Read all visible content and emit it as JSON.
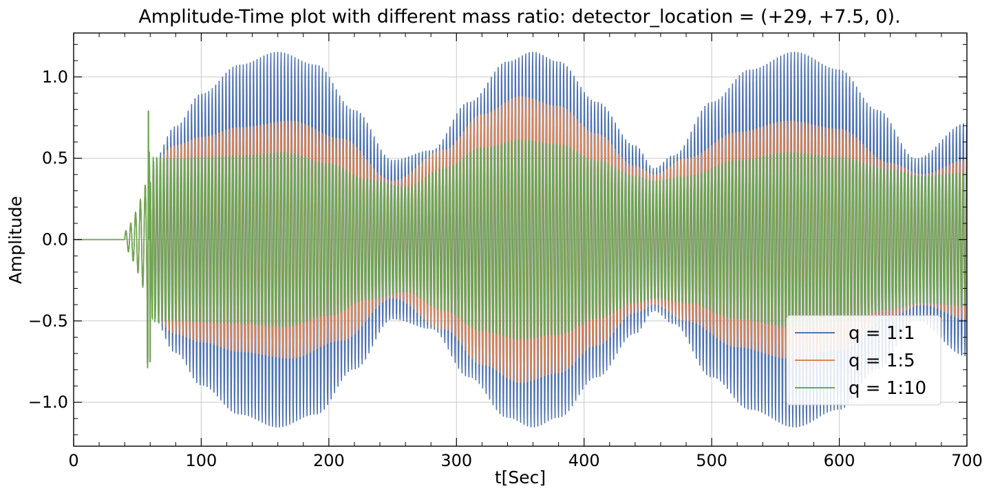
{
  "chart_data": {
    "type": "line",
    "title": "Amplitude-Time plot with different mass ratio: detector_location = (+29, +7.5, 0).",
    "xlabel": "t[Sec]",
    "ylabel": "Amplitude",
    "xlim": [
      0,
      700
    ],
    "ylim": [
      -1.27,
      1.27
    ],
    "xticks": [
      0,
      100,
      200,
      300,
      400,
      500,
      600,
      700
    ],
    "xtick_labels": [
      "0",
      "100",
      "200",
      "300",
      "400",
      "500",
      "600",
      "700"
    ],
    "yticks": [
      -1.0,
      -0.5,
      0.0,
      0.5,
      1.0
    ],
    "ytick_labels": [
      "−1.0",
      "−0.5",
      "0.0",
      "0.5",
      "1.0"
    ],
    "grid": true,
    "legend_position": "lower-right",
    "signal_start": 40,
    "burst_end": 62,
    "burst_peak": {
      "t": 58.5,
      "max": 0.79,
      "min": -0.75
    },
    "series": [
      {
        "name": "q = 1:1",
        "color": "#4c72b0",
        "envelope_t": [
          62,
          80,
          100,
          130,
          160,
          190,
          220,
          250,
          280,
          310,
          340,
          360,
          380,
          410,
          440,
          455,
          470,
          500,
          530,
          565,
          600,
          630,
          660,
          700
        ],
        "envelope_amp": [
          0.48,
          0.7,
          0.9,
          1.08,
          1.16,
          1.08,
          0.8,
          0.49,
          0.55,
          0.85,
          1.1,
          1.16,
          1.1,
          0.85,
          0.58,
          0.44,
          0.52,
          0.85,
          1.05,
          1.16,
          1.05,
          0.8,
          0.5,
          0.72
        ]
      },
      {
        "name": "q = 1:5",
        "color": "#dd8452",
        "envelope_t": [
          62,
          80,
          100,
          130,
          170,
          210,
          250,
          290,
          320,
          350,
          380,
          410,
          440,
          455,
          480,
          520,
          560,
          600,
          640,
          665,
          700
        ],
        "envelope_amp": [
          0.48,
          0.58,
          0.63,
          0.69,
          0.73,
          0.62,
          0.36,
          0.55,
          0.77,
          0.88,
          0.82,
          0.65,
          0.45,
          0.4,
          0.5,
          0.66,
          0.73,
          0.68,
          0.47,
          0.4,
          0.49
        ]
      },
      {
        "name": "q = 1:10",
        "color": "#6aa84f",
        "envelope_t": [
          62,
          80,
          100,
          130,
          165,
          200,
          230,
          260,
          290,
          320,
          350,
          380,
          410,
          440,
          455,
          480,
          520,
          560,
          600,
          640,
          665,
          700
        ],
        "envelope_amp": [
          0.52,
          0.51,
          0.52,
          0.53,
          0.55,
          0.48,
          0.38,
          0.33,
          0.45,
          0.58,
          0.63,
          0.6,
          0.5,
          0.4,
          0.37,
          0.4,
          0.5,
          0.55,
          0.52,
          0.44,
          0.4,
          0.42
        ]
      }
    ]
  }
}
